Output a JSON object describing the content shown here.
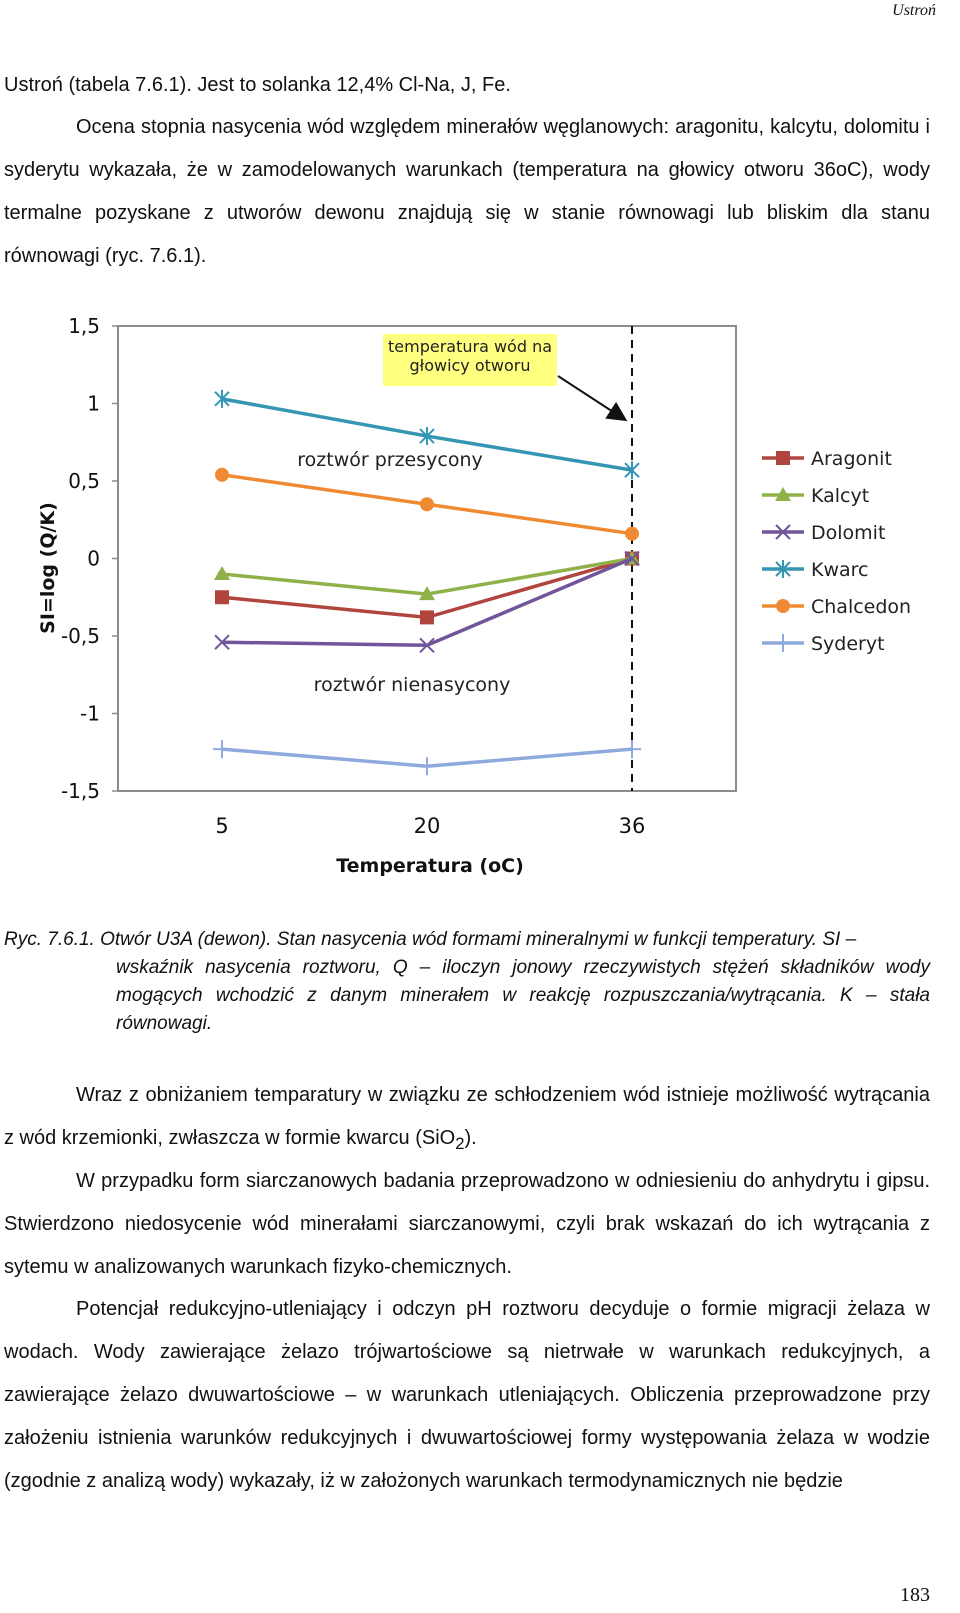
{
  "page": {
    "running_head": "Ustroń",
    "page_number": "183"
  },
  "text": {
    "p1": "Ustroń (tabela 7.6.1). Jest to solanka 12,4% Cl-Na, J, Fe.",
    "p2": "Ocena stopnia nasycenia wód względem minerałów węglanowych: aragonitu, kalcytu, dolomitu i syderytu wykazała, że w zamodelowanych warunkach (temperatura na głowicy otworu 36oC), wody termalne pozyskane z utworów dewonu znajdują się w stanie równowagi lub bliskim dla stanu równowagi (ryc. 7.6.1).",
    "caption_head": "Ryc. 7.6.1. Otwór U3A (dewon). Stan nasycenia wód formami mineralnymi w funkcji temperatury. SI –",
    "caption_body": "wskaźnik nasycenia roztworu, Q – iloczyn jonowy rzeczywistych stężeń składników wody mogących wchodzić z danym minerałem w reakcję rozpuszczania/wytrącania. K – stała równowagi.",
    "p3_pre": "Wraz z obniżaniem temparatury w związku ze schłodzeniem wód istnieje możliwość wytrącania z wód krzemionki, zwłaszcza w formie kwarcu (SiO",
    "p3_sub": "2",
    "p3_post": ").",
    "p4": "W przypadku form siarczanowych badania przeprowadzono w odniesieniu do anhydrytu i gipsu. Stwierdzono niedosycenie wód minerałami siarczanowymi, czyli brak wskazań do ich wytrącania z sytemu w analizowanych warunkach fizyko-chemicznych.",
    "p5": "Potencjał redukcyjno-utleniający i odczyn pH roztworu decyduje o formie migracji żelaza w wodach. Wody zawierające żelazo trójwartościowe są nietrwałe w warunkach redukcyjnych, a zawierające żelazo dwuwartościowe – w warunkach utleniających. Obliczenia przeprowadzone przy założeniu istnienia warunków redukcyjnych i dwuwartościowej formy występowania żelaza w wodzie (zgodnie z analizą wody) wykazały, iż w założonych warunkach termodynamicznych nie będzie"
  },
  "chart_data": {
    "type": "line",
    "x": [
      5,
      20,
      36
    ],
    "x_tick_labels": [
      "5",
      "20",
      "36"
    ],
    "xlabel": "Temperatura (oC)",
    "ylabel": "SI=log (Q/K)",
    "ylim": [
      -1.5,
      1.5
    ],
    "y_ticks": [
      1.5,
      1,
      0.5,
      0,
      -0.5,
      -1,
      -1.5
    ],
    "y_tick_labels": [
      "1,5",
      "1",
      "0,5",
      "0",
      "-0,5",
      "-1",
      "-1,5"
    ],
    "grid": false,
    "legend_position": "right",
    "series": [
      {
        "name": "Aragonit",
        "values": [
          -0.25,
          -0.38,
          0.0
        ],
        "color": "#b0453e",
        "marker": "square"
      },
      {
        "name": "Kalcyt",
        "values": [
          -0.1,
          -0.23,
          0.0
        ],
        "color": "#8fb14a",
        "marker": "triangle"
      },
      {
        "name": "Dolomit",
        "values": [
          -0.54,
          -0.56,
          0.0
        ],
        "color": "#70559a",
        "marker": "x"
      },
      {
        "name": "Kwarc",
        "values": [
          1.03,
          0.79,
          0.57
        ],
        "color": "#3596b3",
        "marker": "asterisk"
      },
      {
        "name": "Chalcedon",
        "values": [
          0.54,
          0.35,
          0.16
        ],
        "color": "#ef8a33",
        "marker": "circle"
      },
      {
        "name": "Syderyt",
        "values": [
          -1.23,
          -1.34,
          -1.23
        ],
        "color": "#8eaadc",
        "marker": "plus"
      }
    ],
    "reference_line": {
      "x": 36,
      "style": "dashed"
    },
    "annotations": {
      "callout_line1": "temperatura wód na",
      "callout_line2": "głowicy otworu",
      "supersaturated": "roztwór przesycony",
      "undersaturated": "roztwór nienasycony"
    }
  }
}
